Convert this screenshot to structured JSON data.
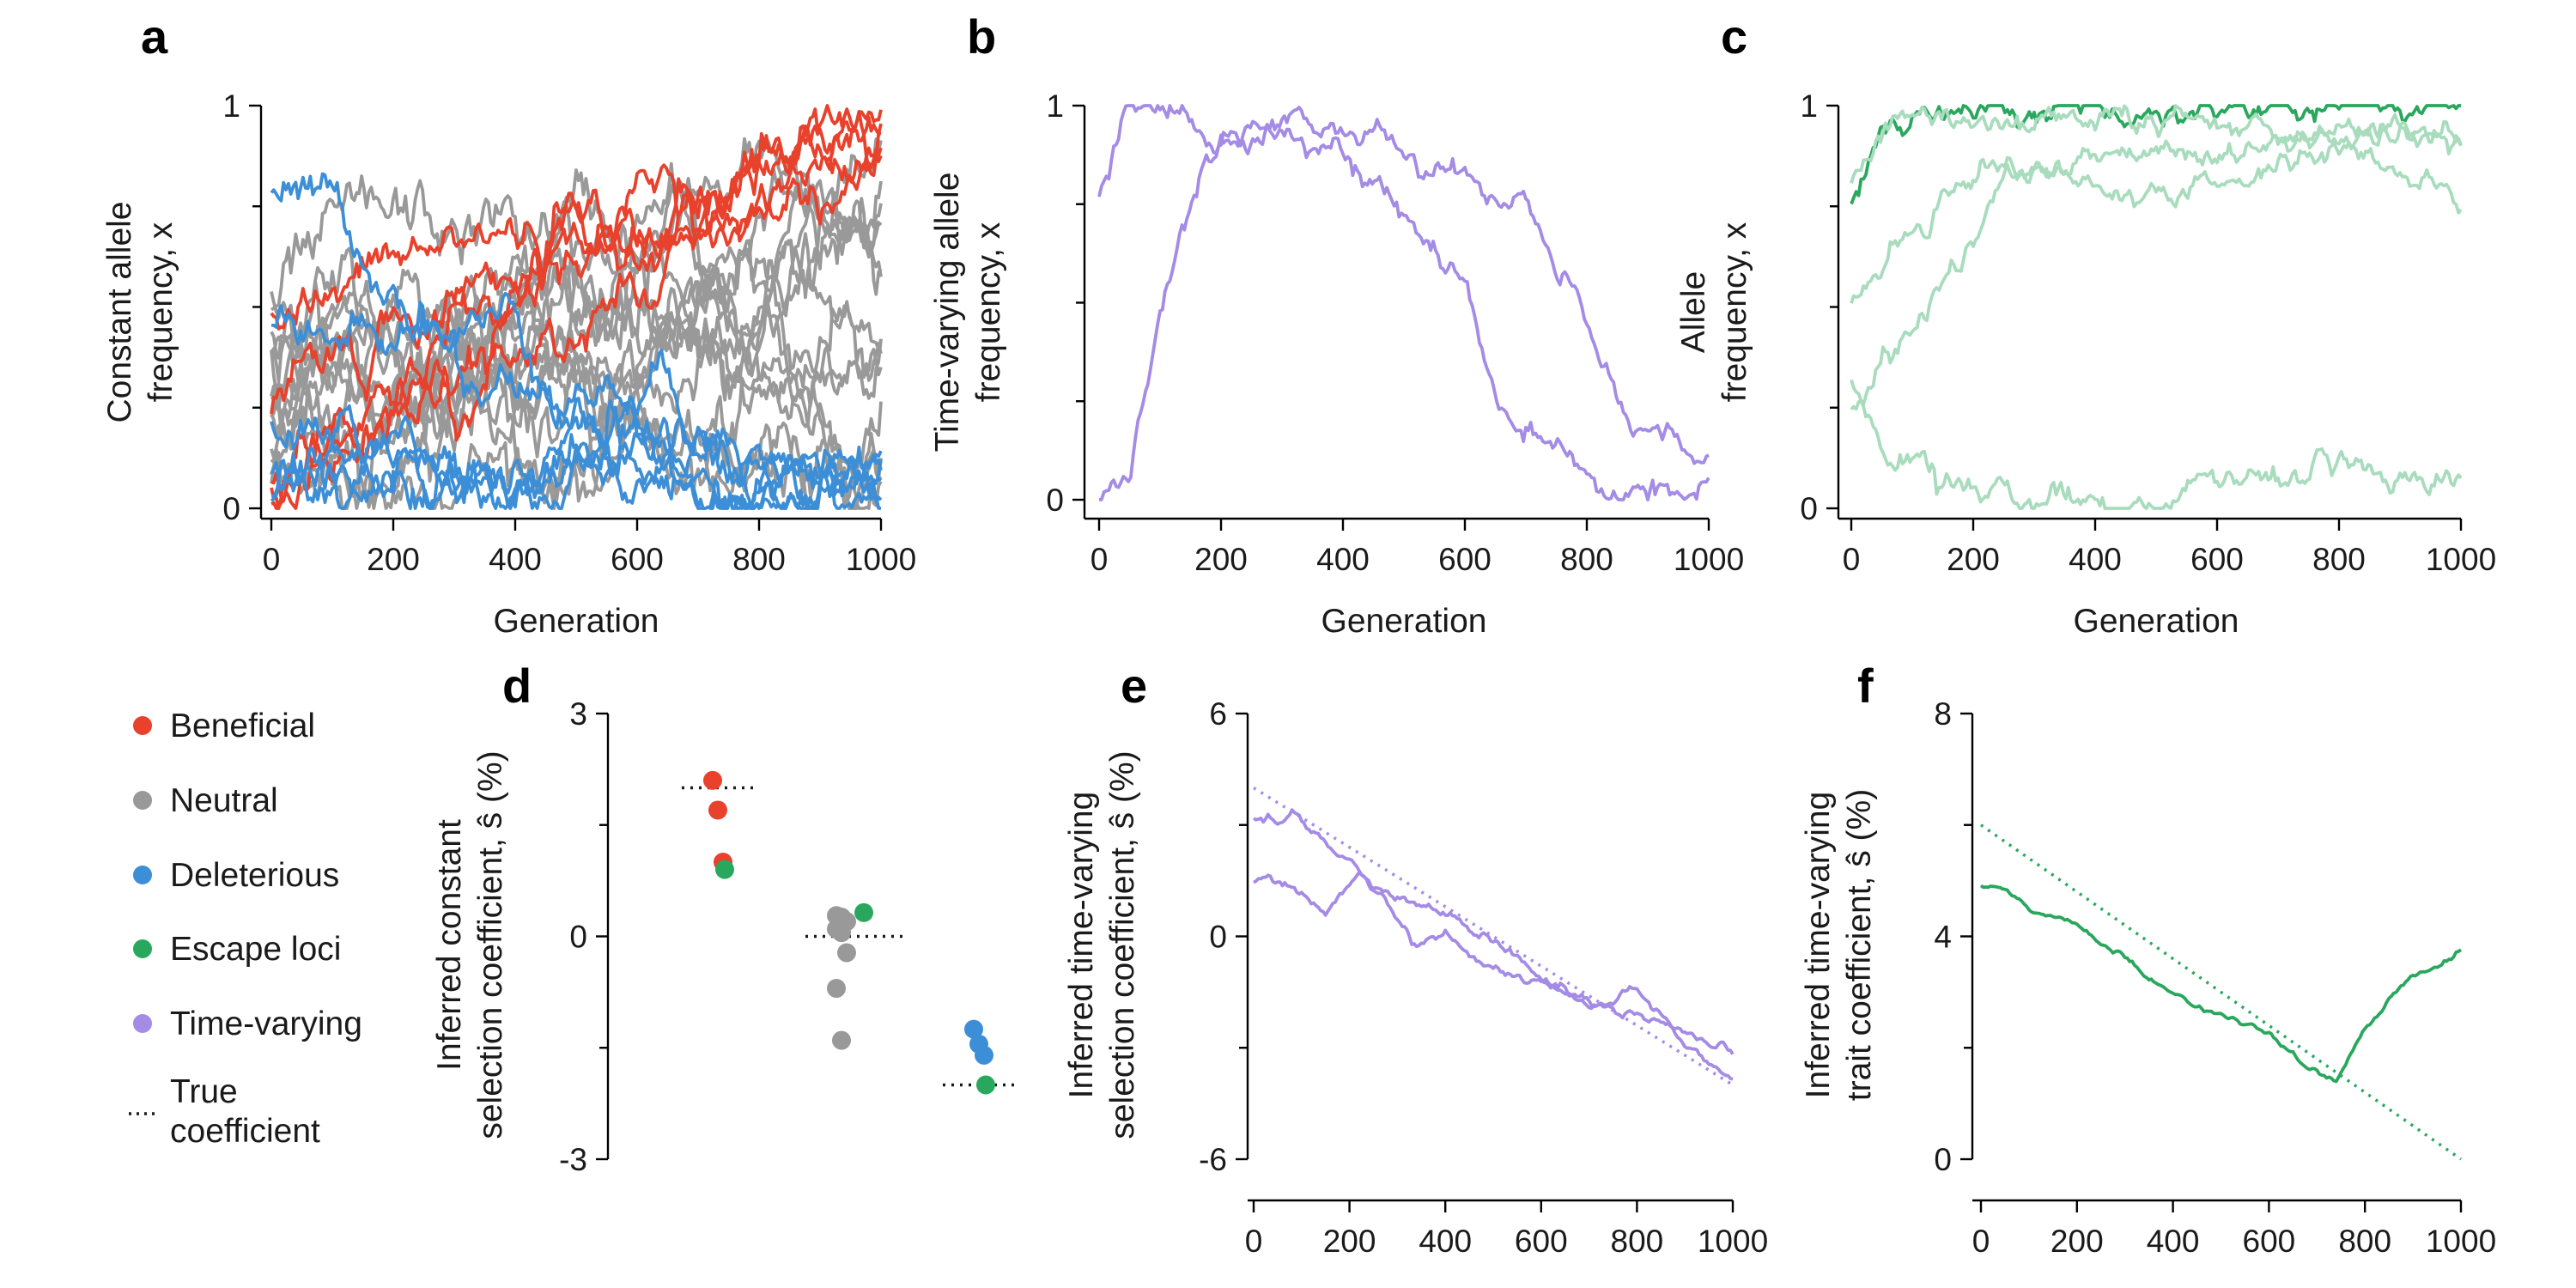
{
  "colors": {
    "beneficial": "#e8412c",
    "neutral": "#999999",
    "deleterious": "#3c8fd7",
    "escape": "#29a85d",
    "escape_light": "#a8dcbd",
    "time_varying": "#a48be6",
    "true": "#1a1a1a"
  },
  "legend": {
    "items": [
      {
        "label": "Beneficial",
        "color_key": "beneficial"
      },
      {
        "label": "Neutral",
        "color_key": "neutral"
      },
      {
        "label": "Deleterious",
        "color_key": "deleterious"
      },
      {
        "label": "Escape loci",
        "color_key": "escape"
      },
      {
        "label": "Time-varying",
        "color_key": "time_varying"
      }
    ],
    "true_line1": "True",
    "true_line2": "coefficient"
  },
  "chart_data": [
    {
      "panel": "a",
      "type": "line",
      "ylabel": [
        "Constant allele",
        "frequency, x"
      ],
      "xlabel": "Generation",
      "xlim": [
        0,
        1000
      ],
      "ylim": [
        0,
        1
      ],
      "xticks": [
        "0",
        "200",
        "400",
        "600",
        "800",
        "1000"
      ],
      "yticks": [
        "0",
        "1"
      ],
      "series_groups": [
        {
          "color_key": "neutral",
          "count": 14,
          "start_range": [
            0.0,
            0.55
          ],
          "end_range": [
            0.1,
            0.95
          ]
        },
        {
          "color_key": "beneficial",
          "count": 5,
          "start_values": [
            0.25,
            0.45,
            0.08,
            0.03,
            0.02
          ],
          "end_value": 0.95
        },
        {
          "color_key": "deleterious",
          "count": 6,
          "start_values": [
            0.75,
            0.5,
            0.22,
            0.05,
            0.03,
            0.01
          ],
          "end_value": 0.05
        }
      ]
    },
    {
      "panel": "b",
      "type": "line",
      "ylabel": [
        "Time-varying allele",
        "frequency, x"
      ],
      "xlabel": "Generation",
      "xlim": [
        0,
        1000
      ],
      "ylim": [
        0,
        1
      ],
      "xticks": [
        "0",
        "200",
        "400",
        "600",
        "800",
        "1000"
      ],
      "yticks": [
        "0",
        "1"
      ],
      "series_groups": [
        {
          "color_key": "time_varying",
          "count": 2,
          "keypoints": [
            [
              [
                0,
                0.75
              ],
              [
                40,
                0.97
              ],
              [
                100,
                0.98
              ],
              [
                200,
                0.9
              ],
              [
                280,
                0.97
              ],
              [
                400,
                0.9
              ],
              [
                500,
                0.7
              ],
              [
                600,
                0.55
              ],
              [
                650,
                0.25
              ],
              [
                720,
                0.15
              ],
              [
                800,
                0.02
              ],
              [
                1000,
                0.02
              ]
            ],
            [
              [
                0,
                0.0
              ],
              [
                50,
                0.05
              ],
              [
                100,
                0.45
              ],
              [
                150,
                0.75
              ],
              [
                200,
                0.9
              ],
              [
                300,
                0.97
              ],
              [
                450,
                0.92
              ],
              [
                600,
                0.8
              ],
              [
                700,
                0.75
              ],
              [
                800,
                0.45
              ],
              [
                850,
                0.25
              ],
              [
                1000,
                0.08
              ]
            ]
          ]
        }
      ]
    },
    {
      "panel": "c",
      "type": "line",
      "ylabel": [
        "Allele",
        "frequency, x"
      ],
      "xlabel": "Generation",
      "xlim": [
        0,
        1000
      ],
      "ylim": [
        0,
        1
      ],
      "xticks": [
        "0",
        "200",
        "400",
        "600",
        "800",
        "1000"
      ],
      "yticks": [
        "0",
        "1"
      ],
      "series_groups": [
        {
          "color_key": "escape",
          "count": 1,
          "keypoints": [
            [
              [
                0,
                0.75
              ],
              [
                50,
                0.95
              ],
              [
                200,
                0.98
              ],
              [
                600,
                0.99
              ],
              [
                1000,
                1.0
              ]
            ]
          ]
        },
        {
          "color_key": "escape_light",
          "count": 4,
          "keypoints": [
            [
              [
                0,
                0.8
              ],
              [
                50,
                0.95
              ],
              [
                200,
                0.97
              ],
              [
                600,
                0.96
              ],
              [
                1000,
                0.92
              ]
            ],
            [
              [
                0,
                0.5
              ],
              [
                100,
                0.7
              ],
              [
                200,
                0.85
              ],
              [
                350,
                0.85
              ],
              [
                450,
                0.75
              ],
              [
                600,
                0.8
              ],
              [
                800,
                0.9
              ],
              [
                1000,
                0.75
              ]
            ],
            [
              [
                0,
                0.25
              ],
              [
                50,
                0.35
              ],
              [
                150,
                0.55
              ],
              [
                250,
                0.8
              ],
              [
                400,
                0.9
              ],
              [
                600,
                0.88
              ],
              [
                800,
                0.92
              ],
              [
                1000,
                0.9
              ]
            ],
            [
              [
                0,
                0.3
              ],
              [
                50,
                0.15
              ],
              [
                150,
                0.08
              ],
              [
                300,
                0.02
              ],
              [
                500,
                0.02
              ],
              [
                700,
                0.1
              ],
              [
                850,
                0.08
              ],
              [
                1000,
                0.07
              ]
            ]
          ]
        }
      ]
    },
    {
      "panel": "d",
      "type": "scatter",
      "ylabel": [
        "Inferred constant",
        "selection coefficient, ŝ (%)"
      ],
      "ylim": [
        -3,
        3
      ],
      "yticks": [
        "-3",
        "0",
        "3"
      ],
      "groups": [
        {
          "name": "Beneficial",
          "true_value": 2.0,
          "points": [
            {
              "y": 2.1,
              "color_key": "beneficial"
            },
            {
              "y": 1.7,
              "color_key": "beneficial"
            },
            {
              "y": 1.0,
              "color_key": "beneficial"
            },
            {
              "y": 0.9,
              "color_key": "escape"
            }
          ]
        },
        {
          "name": "Neutral",
          "true_value": 0.0,
          "points": [
            {
              "y": 0.28,
              "color_key": "neutral"
            },
            {
              "y": 0.26,
              "color_key": "neutral"
            },
            {
              "y": 0.2,
              "color_key": "neutral"
            },
            {
              "y": 0.1,
              "color_key": "neutral"
            },
            {
              "y": 0.05,
              "color_key": "neutral"
            },
            {
              "y": -0.22,
              "color_key": "neutral"
            },
            {
              "y": -0.7,
              "color_key": "neutral"
            },
            {
              "y": -1.4,
              "color_key": "neutral"
            },
            {
              "y": 0.32,
              "color_key": "escape"
            }
          ]
        },
        {
          "name": "Deleterious",
          "true_value": -2.0,
          "points": [
            {
              "y": -1.25,
              "color_key": "deleterious"
            },
            {
              "y": -1.45,
              "color_key": "deleterious"
            },
            {
              "y": -1.6,
              "color_key": "deleterious"
            },
            {
              "y": -2.0,
              "color_key": "escape"
            }
          ]
        }
      ]
    },
    {
      "panel": "e",
      "type": "line",
      "ylabel": [
        "Inferred time-varying",
        "selection coefficient, ŝ (%)"
      ],
      "xlabel": "Generation",
      "xlim": [
        0,
        1000
      ],
      "ylim": [
        -6,
        6
      ],
      "xticks": [
        "0",
        "200",
        "400",
        "600",
        "800",
        "1000"
      ],
      "yticks": [
        "-6",
        "0",
        "6"
      ],
      "true_line": {
        "x": [
          0,
          1000
        ],
        "y": [
          4.0,
          -4.0
        ],
        "color_key": "time_varying"
      },
      "series_groups": [
        {
          "color_key": "time_varying",
          "count": 2,
          "keypoints": [
            [
              [
                0,
                3.1
              ],
              [
                50,
                3.2
              ],
              [
                80,
                3.5
              ],
              [
                150,
                2.5
              ],
              [
                250,
                1.5
              ],
              [
                350,
                0.8
              ],
              [
                450,
                0.3
              ],
              [
                550,
                -0.5
              ],
              [
                650,
                -1.5
              ],
              [
                750,
                -2.0
              ],
              [
                850,
                -2.5
              ],
              [
                950,
                -3.2
              ],
              [
                1000,
                -3.3
              ]
            ],
            [
              [
                0,
                1.5
              ],
              [
                50,
                1.6
              ],
              [
                100,
                1.2
              ],
              [
                150,
                0.5
              ],
              [
                220,
                1.8
              ],
              [
                280,
                1.0
              ],
              [
                330,
                -0.2
              ],
              [
                400,
                0.2
              ],
              [
                480,
                -0.8
              ],
              [
                600,
                -1.2
              ],
              [
                700,
                -1.8
              ],
              [
                800,
                -1.5
              ],
              [
                900,
                -2.8
              ],
              [
                1000,
                -3.8
              ]
            ]
          ]
        }
      ]
    },
    {
      "panel": "f",
      "type": "line",
      "ylabel": [
        "Inferred time-varying",
        "trait coefficient, ŝ (%)"
      ],
      "xlabel": "Generation",
      "xlim": [
        0,
        1000
      ],
      "ylim": [
        0,
        8
      ],
      "xticks": [
        "0",
        "200",
        "400",
        "600",
        "800",
        "1000"
      ],
      "yticks": [
        "0",
        "4",
        "8"
      ],
      "true_line": {
        "x": [
          0,
          1000
        ],
        "y": [
          6.0,
          0.0
        ],
        "color_key": "escape"
      },
      "series_groups": [
        {
          "color_key": "escape",
          "count": 1,
          "keypoints": [
            [
              [
                0,
                4.9
              ],
              [
                50,
                4.75
              ],
              [
                120,
                4.4
              ],
              [
                200,
                4.2
              ],
              [
                300,
                3.6
              ],
              [
                400,
                3.0
              ],
              [
                500,
                2.6
              ],
              [
                600,
                2.2
              ],
              [
                680,
                1.6
              ],
              [
                740,
                1.45
              ],
              [
                800,
                2.3
              ],
              [
                900,
                3.3
              ],
              [
                1000,
                3.75
              ]
            ]
          ]
        }
      ]
    }
  ]
}
